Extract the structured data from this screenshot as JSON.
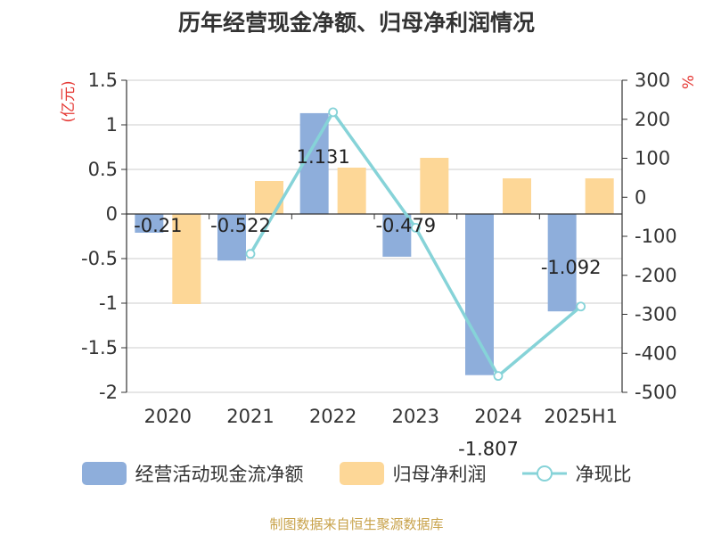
{
  "title": "历年经营现金净额、归母净利润情况",
  "footer": "制图数据来自恒生聚源数据库",
  "colors": {
    "cash": "#8eaedb",
    "profit": "#fdd797",
    "ratio": "#86d3d8",
    "unit": "#e53935"
  },
  "chart_data": {
    "type": "bar",
    "categories": [
      "2020",
      "2021",
      "2022",
      "2023",
      "2024",
      "2025H1"
    ],
    "y_left": {
      "label": "(亿元)",
      "ticks": [
        "1.5",
        "1",
        "0.5",
        "0",
        "-0.5",
        "-1",
        "-1.5",
        "-2"
      ],
      "ylim": [
        -2,
        1.5
      ]
    },
    "y_right": {
      "label": "%",
      "ticks": [
        "300",
        "200",
        "100",
        "0",
        "-100",
        "-200",
        "-300",
        "-400",
        "-500"
      ],
      "ylim": [
        -500,
        300
      ]
    },
    "series": [
      {
        "name": "经营活动现金流净额",
        "type": "bar",
        "axis": "left",
        "values": [
          -0.21,
          -0.522,
          1.131,
          -0.479,
          -1.807,
          -1.092
        ],
        "labels": [
          "-0.21",
          "-0.522",
          "1.131",
          "-0.479",
          "-1.807",
          "-1.092"
        ]
      },
      {
        "name": "归母净利润",
        "type": "bar",
        "axis": "left",
        "values": [
          -1.01,
          0.37,
          0.52,
          0.63,
          0.4,
          0.4
        ]
      },
      {
        "name": "净现比",
        "type": "line",
        "axis": "right",
        "values": [
          null,
          -145,
          218,
          -78,
          -458,
          -280
        ]
      }
    ],
    "grid": true,
    "legend_position": "bottom"
  }
}
